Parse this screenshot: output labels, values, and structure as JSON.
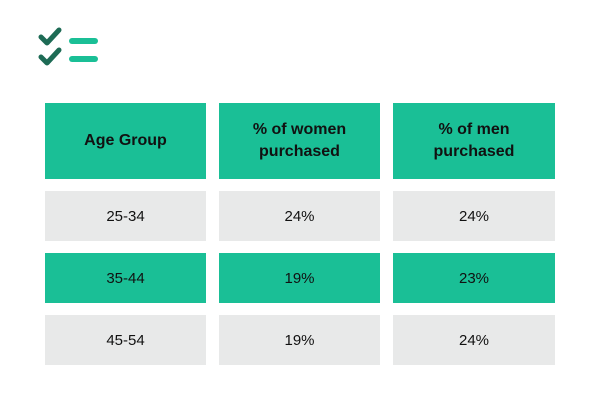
{
  "colors": {
    "header_bg": "#1abf96",
    "alt_row_bg": "#e8e9e9",
    "logo_check": "#1d6b55",
    "logo_line": "#1abf96"
  },
  "logo": {
    "icon": "checklist-icon"
  },
  "chart_data": {
    "type": "table",
    "columns": [
      "Age Group",
      "% of women purchased",
      "% of men purchased"
    ],
    "rows": [
      [
        "25-34",
        "24%",
        "24%"
      ],
      [
        "35-44",
        "19%",
        "23%"
      ],
      [
        "45-54",
        "19%",
        "24%"
      ]
    ],
    "row_colors": [
      "#e8e9e9",
      "#1abf96",
      "#e8e9e9"
    ]
  }
}
